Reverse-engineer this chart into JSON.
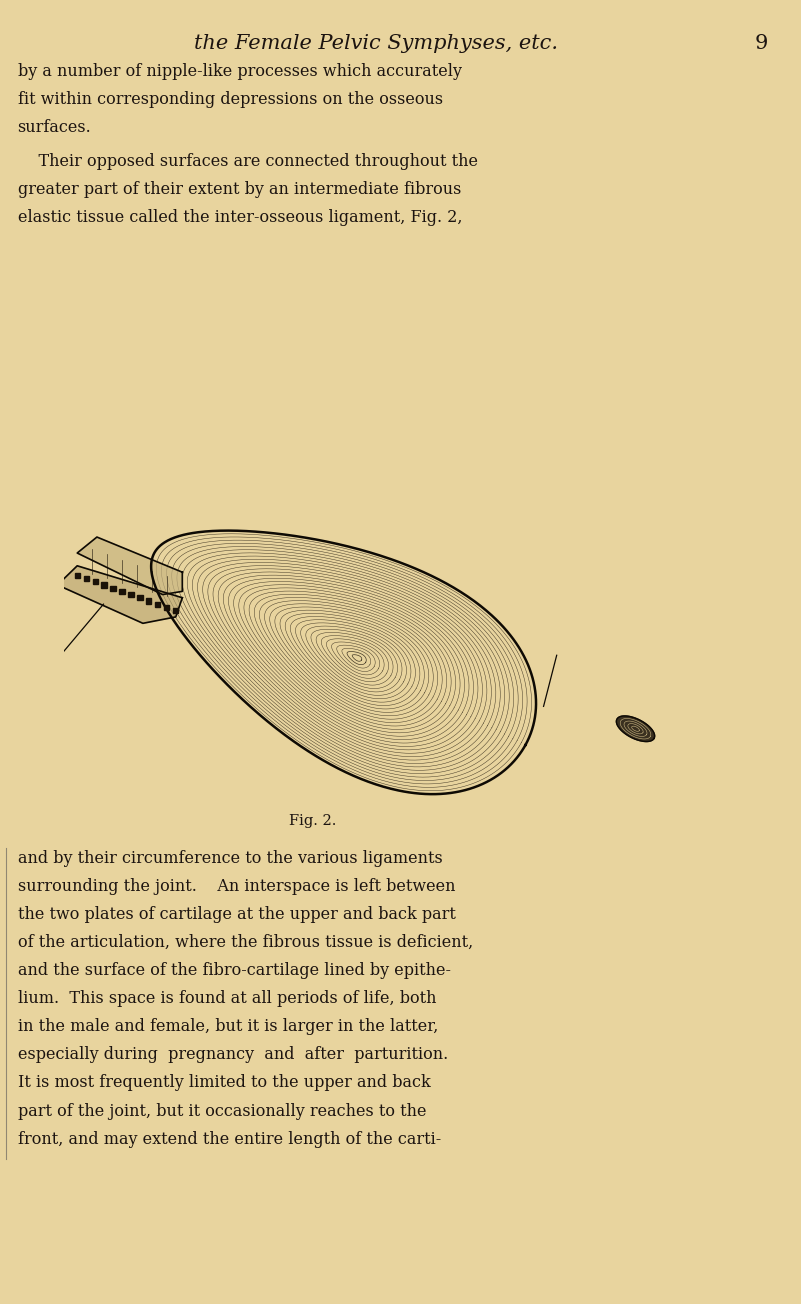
{
  "background_color": "#e8d49e",
  "page_width": 8.01,
  "page_height": 13.04,
  "header_text": "the Female Pelvic Symphyses, etc.",
  "page_number": "9",
  "header_font_size": 15,
  "body_font_size": 11.5,
  "caption_text": "Fig. 2.",
  "caption_font_size": 10.5,
  "text_color": "#1c1410",
  "header_color": "#1c1410",
  "paragraph1_lines": [
    "by a number of nipple-like processes which accurately",
    "fit within corresponding depressions on the osseous",
    "surfaces."
  ],
  "paragraph2_lines": [
    "    Their opposed surfaces are connected throughout the",
    "greater part of their extent by an intermediate fibrous",
    "elastic tissue called the inter-osseous ligament, Fig. 2,"
  ],
  "paragraph3_lines": [
    "and by their circumference to the various ligaments",
    "surrounding the joint.    An interspace is left between",
    "the two plates of cartilage at the upper and back part",
    "of the articulation, where the fibrous tissue is deficient,",
    "and the surface of the fibro-cartilage lined by epithe-",
    "lium.  This space is found at all periods of life, both",
    "in the male and female, but it is larger in the latter,",
    "especially during  pregnancy  and  after  parturition.",
    "It is most frequently limited to the upper and back",
    "part of the joint, but it occasionally reaches to the",
    "front, and may extend the entire length of the carti-"
  ]
}
